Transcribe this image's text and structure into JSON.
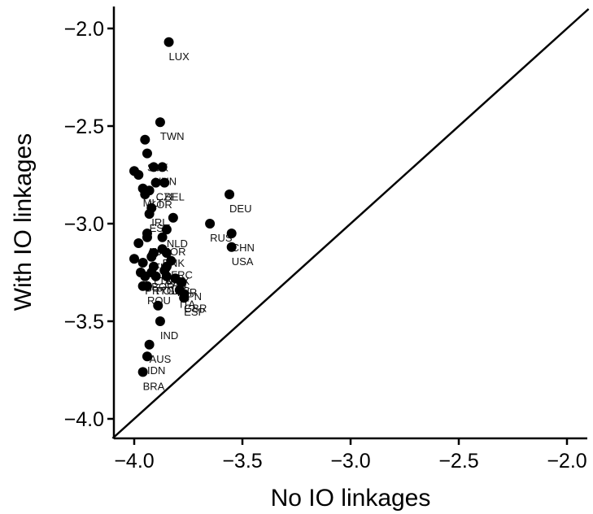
{
  "chart_data": {
    "type": "scatter",
    "xlabel": "No IO linkages",
    "ylabel": "With IO linkages",
    "xlim": [
      -4.1,
      -1.9
    ],
    "ylim": [
      -4.1,
      -1.9
    ],
    "x_ticks": [
      {
        "value": -4.0,
        "label": "−4.0"
      },
      {
        "value": -3.5,
        "label": "−3.5"
      },
      {
        "value": -3.0,
        "label": "−3.0"
      },
      {
        "value": -2.5,
        "label": "−2.5"
      },
      {
        "value": -2.0,
        "label": "−2.0"
      }
    ],
    "y_ticks": [
      {
        "value": -4.0,
        "label": "−4.0"
      },
      {
        "value": -3.5,
        "label": "−3.5"
      },
      {
        "value": -3.0,
        "label": "−3.0"
      },
      {
        "value": -2.5,
        "label": "−2.5"
      },
      {
        "value": -2.0,
        "label": "−2.0"
      }
    ],
    "reference_line": {
      "type": "y=x"
    },
    "point_color": "#000000",
    "line_color": "#000000",
    "points": [
      {
        "label": "LUX",
        "x": -3.84,
        "y": -2.07
      },
      {
        "label": "TWN",
        "x": -3.88,
        "y": -2.48
      },
      {
        "label": "",
        "x": -3.95,
        "y": -2.57
      },
      {
        "label": "SVK",
        "x": -3.94,
        "y": -2.64
      },
      {
        "label": "HUN",
        "x": -3.91,
        "y": -2.71
      },
      {
        "label": "",
        "x": -3.87,
        "y": -2.71
      },
      {
        "label": "",
        "x": -4.0,
        "y": -2.73
      },
      {
        "label": "",
        "x": -3.98,
        "y": -2.75
      },
      {
        "label": "CZE",
        "x": -3.9,
        "y": -2.79
      },
      {
        "label": "BEL",
        "x": -3.86,
        "y": -2.79
      },
      {
        "label": "MLT",
        "x": -3.96,
        "y": -2.82
      },
      {
        "label": "KOR",
        "x": -3.93,
        "y": -2.83
      },
      {
        "label": "",
        "x": -3.95,
        "y": -2.85
      },
      {
        "label": "DEU",
        "x": -3.56,
        "y": -2.85
      },
      {
        "label": "IRL",
        "x": -3.92,
        "y": -2.92
      },
      {
        "label": "EST",
        "x": -3.93,
        "y": -2.95
      },
      {
        "label": "",
        "x": -3.82,
        "y": -2.97
      },
      {
        "label": "NLD",
        "x": -3.85,
        "y": -3.03
      },
      {
        "label": "RUS",
        "x": -3.65,
        "y": -3.0
      },
      {
        "label": "",
        "x": -3.94,
        "y": -3.05
      },
      {
        "label": "CHN",
        "x": -3.55,
        "y": -3.05
      },
      {
        "label": "NOR",
        "x": -3.87,
        "y": -3.07
      },
      {
        "label": "AUT",
        "x": -3.94,
        "y": -3.07
      },
      {
        "label": "",
        "x": -3.98,
        "y": -3.1
      },
      {
        "label": "USA",
        "x": -3.55,
        "y": -3.12
      },
      {
        "label": "DNK",
        "x": -3.87,
        "y": -3.13
      },
      {
        "label": "FIN",
        "x": -3.91,
        "y": -3.15
      },
      {
        "label": "",
        "x": -3.85,
        "y": -3.15
      },
      {
        "label": "",
        "x": -4.0,
        "y": -3.18
      },
      {
        "label": "",
        "x": -3.92,
        "y": -3.17
      },
      {
        "label": "FRC",
        "x": -3.83,
        "y": -3.19
      },
      {
        "label": "",
        "x": -3.96,
        "y": -3.2
      },
      {
        "label": "LTU",
        "x": -3.91,
        "y": -3.22
      },
      {
        "label": "MEX",
        "x": -3.85,
        "y": -3.22
      },
      {
        "label": "BGR",
        "x": -3.92,
        "y": -3.25
      },
      {
        "label": "CAN",
        "x": -3.86,
        "y": -3.24
      },
      {
        "label": "",
        "x": -3.97,
        "y": -3.25
      },
      {
        "label": "PRT",
        "x": -3.95,
        "y": -3.27
      },
      {
        "label": "POL",
        "x": -3.9,
        "y": -3.27
      },
      {
        "label": "GRC",
        "x": -3.85,
        "y": -3.27
      },
      {
        "label": "TUR",
        "x": -3.81,
        "y": -3.28
      },
      {
        "label": "JPN",
        "x": -3.78,
        "y": -3.3
      },
      {
        "label": "",
        "x": -3.96,
        "y": -3.32
      },
      {
        "label": "ROU",
        "x": -3.94,
        "y": -3.32
      },
      {
        "label": "ITA",
        "x": -3.79,
        "y": -3.34
      },
      {
        "label": "GBR",
        "x": -3.77,
        "y": -3.36
      },
      {
        "label": "ESP",
        "x": -3.77,
        "y": -3.38
      },
      {
        "label": "",
        "x": -3.89,
        "y": -3.42
      },
      {
        "label": "IND",
        "x": -3.88,
        "y": -3.5
      },
      {
        "label": "AUS",
        "x": -3.93,
        "y": -3.62
      },
      {
        "label": "IDN",
        "x": -3.94,
        "y": -3.68
      },
      {
        "label": "BRA",
        "x": -3.96,
        "y": -3.76
      }
    ]
  }
}
